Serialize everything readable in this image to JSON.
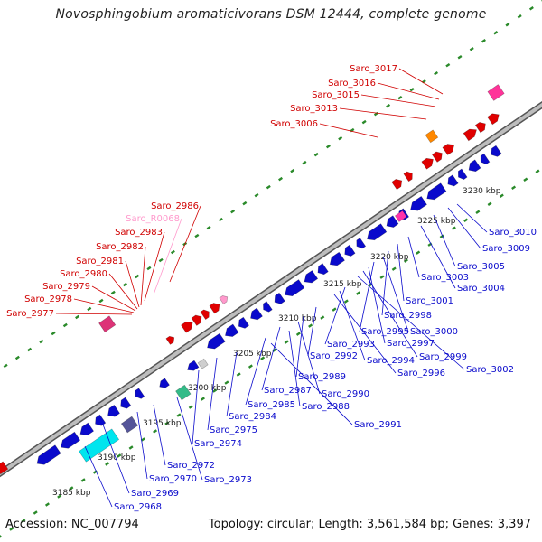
{
  "title": "Novosphingobium aromaticivorans DSM 12444, complete genome",
  "footer": {
    "accession": "Accession: NC_007794",
    "summary": "Topology: circular; Length: 3,561,584 bp; Genes: 3,397"
  },
  "colors": {
    "forward": "#e00000",
    "reverse": "#0a0acc",
    "rna": "#ff99cc",
    "backbone": "#8a8a8a",
    "tick": "#2a8a2a"
  },
  "ticks": [
    "3185 kbp",
    "3190 kbp",
    "3195 kbp",
    "3200 kbp",
    "3205 kbp",
    "3210 kbp",
    "3215 kbp",
    "3220 kbp",
    "3225 kbp",
    "3230 kbp"
  ],
  "forward_genes": [
    "Saro_3017",
    "Saro_3016",
    "Saro_3015",
    "Saro_3013",
    "Saro_3006"
  ],
  "top_left_genes": [
    "Saro_2986",
    "Saro_R0068",
    "Saro_2983",
    "Saro_2982",
    "Saro_2981",
    "Saro_2980",
    "Saro_2979",
    "Saro_2978",
    "Saro_2977"
  ],
  "reverse_genes": [
    "Saro_3010",
    "Saro_3009",
    "Saro_3005",
    "Saro_3004",
    "Saro_3003",
    "Saro_3001",
    "Saro_2998",
    "Saro_3000",
    "Saro_2995",
    "Saro_2997",
    "Saro_2999",
    "Saro_3002",
    "Saro_2993",
    "Saro_2994",
    "Saro_2996",
    "Saro_2992",
    "Saro_2989",
    "Saro_2990",
    "Saro_2987",
    "Saro_2988",
    "Saro_2985",
    "Saro_2991",
    "Saro_2984",
    "Saro_2975",
    "Saro_2974",
    "Saro_2972",
    "Saro_2970",
    "Saro_2973",
    "Saro_2969",
    "Saro_2968"
  ]
}
